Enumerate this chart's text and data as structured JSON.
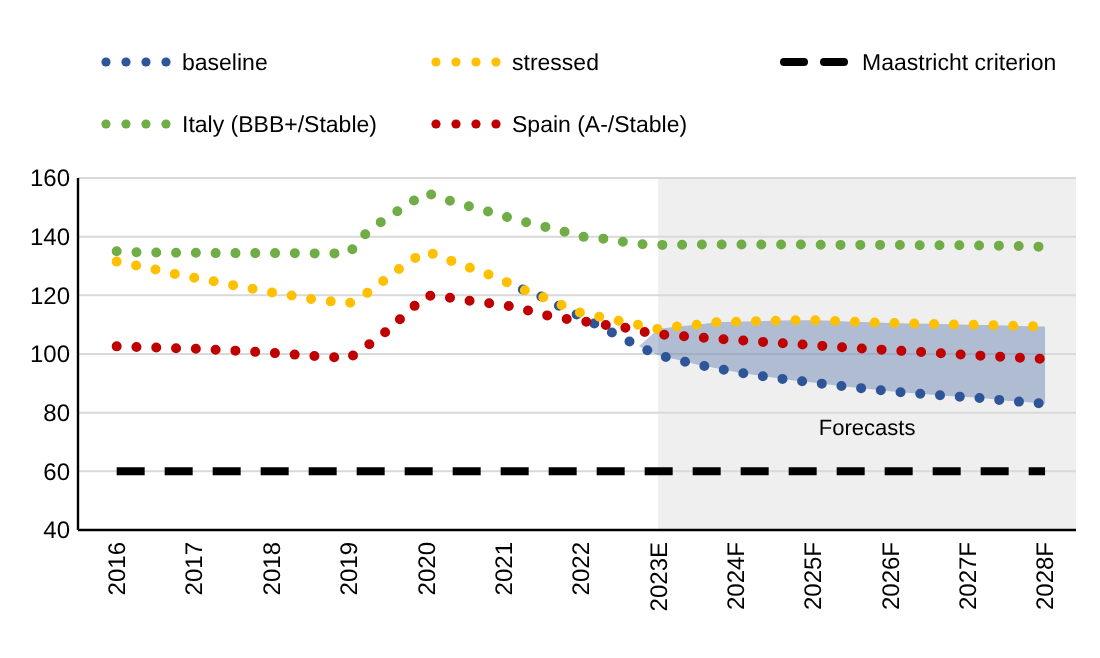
{
  "chart_data": {
    "type": "line",
    "x": [
      2016,
      2016.25,
      2016.5,
      2016.75,
      2017,
      2017.25,
      2017.5,
      2017.75,
      2018,
      2018.25,
      2018.5,
      2018.75,
      2019,
      2019.25,
      2019.5,
      2019.75,
      2020,
      2020.25,
      2020.5,
      2020.75,
      2021,
      2021.25,
      2021.5,
      2021.75,
      2022,
      2022.25,
      2022.5,
      2022.75,
      2023,
      2023.25,
      2023.5,
      2023.75,
      2024,
      2024.25,
      2024.5,
      2024.75,
      2025,
      2025.25,
      2025.5,
      2025.75,
      2026,
      2026.25,
      2026.5,
      2026.75,
      2027,
      2027.25,
      2027.5,
      2027.75,
      2028
    ],
    "series": [
      {
        "name": "baseline",
        "color": "#2e5597",
        "line_style": "dotted",
        "x": [
          2021.25,
          2021.5,
          2021.75,
          2022,
          2022.25,
          2022.5,
          2022.75,
          2023,
          2023.25,
          2023.5,
          2023.75,
          2024,
          2024.25,
          2024.5,
          2024.75,
          2025,
          2025.25,
          2025.5,
          2025.75,
          2026,
          2026.25,
          2026.5,
          2026.75,
          2027,
          2027.25,
          2027.5,
          2027.75,
          2028
        ],
        "values": [
          122,
          119.5,
          116,
          112.8,
          109.4,
          106,
          102.6,
          99.6,
          98,
          96.4,
          95.1,
          93.9,
          92.8,
          91.9,
          91,
          90.3,
          89.4,
          88.7,
          88,
          87.3,
          86.7,
          86.2,
          85.7,
          85.3,
          84.8,
          84.1,
          83.6,
          83
        ],
        "lower": [
          122,
          119.5,
          116,
          112.8,
          109.4,
          106,
          102.6,
          99.6,
          98,
          96.4,
          95.1,
          93.9,
          92.8,
          91.9,
          91,
          90.3,
          89.4,
          88.7,
          88,
          87.3,
          86.7,
          86.2,
          85.7,
          85.3,
          84.8,
          84.1,
          83.6,
          83
        ],
        "upper": [
          122,
          119.5,
          116,
          112.8,
          109.4,
          106,
          102.6,
          108.5,
          109.4,
          110,
          110.8,
          111,
          111.2,
          111.3,
          111.5,
          111.5,
          111.3,
          111,
          110.8,
          110.6,
          110.4,
          110.3,
          110.1,
          110,
          109.9,
          109.7,
          109.5,
          109.4
        ]
      },
      {
        "name": "stressed",
        "color": "#ffc000",
        "line_style": "dotted",
        "values": [
          131.5,
          130.2,
          128.8,
          127.3,
          126,
          124.8,
          123.5,
          122.3,
          121,
          120,
          118.8,
          118,
          117.2,
          121,
          126,
          131,
          135,
          132.5,
          130,
          127.7,
          125,
          122,
          119.5,
          116.7,
          114,
          112.6,
          111.3,
          109.9,
          108.5,
          109.4,
          110,
          110.8,
          111,
          111.2,
          111.3,
          111.5,
          111.5,
          111.3,
          111,
          110.8,
          110.6,
          110.4,
          110.3,
          110.1,
          110,
          109.9,
          109.7,
          109.5,
          109.4
        ]
      },
      {
        "name": "Maastricht criterion",
        "color": "#000000",
        "line_style": "dashed",
        "x": [
          2016,
          2028
        ],
        "values": [
          60,
          60
        ]
      },
      {
        "name": "Italy (BBB+/Stable)",
        "color": "#70ad47",
        "line_style": "dotted",
        "values": [
          135,
          134.7,
          134.6,
          134.5,
          134.5,
          134.4,
          134.4,
          134.4,
          134.4,
          134.4,
          134.3,
          134.3,
          134.3,
          142,
          146.5,
          150.7,
          155,
          152.7,
          150.7,
          149,
          147,
          145.2,
          143.6,
          142,
          140,
          139.5,
          138.4,
          137.5,
          137.2,
          137.2,
          137.3,
          137.3,
          137.3,
          137.3,
          137.3,
          137.3,
          137.3,
          137.2,
          137.2,
          137.2,
          137.2,
          137.1,
          137.1,
          137.1,
          137,
          137,
          136.9,
          136.8,
          136.5
        ]
      },
      {
        "name": "Spain (A-/Stable)",
        "color": "#c00000",
        "line_style": "dotted",
        "values": [
          102.6,
          102.4,
          102.2,
          102,
          101.8,
          101.5,
          101.2,
          100.8,
          100.4,
          99.9,
          99.4,
          99,
          98.5,
          103,
          108,
          114,
          120,
          119.4,
          118.4,
          117.5,
          116.8,
          115.3,
          113.5,
          112.2,
          111.3,
          110.1,
          109.4,
          107.8,
          106.7,
          106.2,
          105.7,
          105.2,
          104.8,
          104.3,
          103.9,
          103.4,
          103,
          102.5,
          102.1,
          101.7,
          101.3,
          100.9,
          100.5,
          100.1,
          99.7,
          99.3,
          99,
          98.6,
          98.3
        ]
      }
    ],
    "bands": [
      {
        "axis": "x",
        "from": 2023,
        "to": 2028.4,
        "label": "Forecasts",
        "color": "#efefef"
      }
    ],
    "xlim": [
      2015.5,
      2028.4
    ],
    "xticks": [
      2016,
      2017,
      2018,
      2019,
      2020,
      2021,
      2022,
      {
        "value": 2023,
        "label": "2023E"
      },
      {
        "value": 2024,
        "label": "2024F"
      },
      {
        "value": 2025,
        "label": "2025F"
      },
      {
        "value": 2026,
        "label": "2026F"
      },
      {
        "value": 2027,
        "label": "2027F"
      },
      {
        "value": 2028,
        "label": "2028F"
      }
    ],
    "ylim": [
      40,
      160
    ],
    "yticks": [
      40,
      60,
      80,
      100,
      120,
      140,
      160
    ],
    "grid": "y",
    "legend": "top"
  }
}
